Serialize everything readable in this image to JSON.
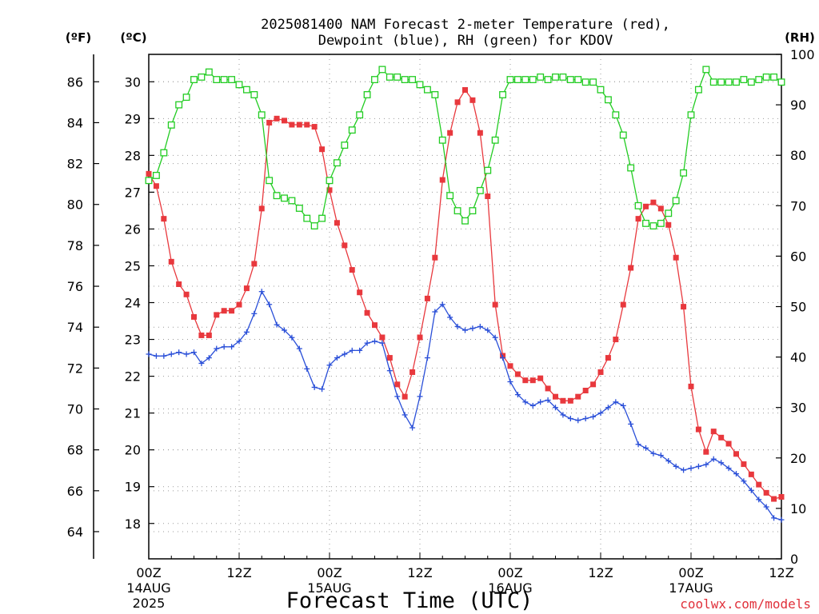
{
  "title_line1": "2025081400 NAM Forecast 2-meter Temperature (red),",
  "title_line2": "Dewpoint (blue), RH (green) for KDOV",
  "unit_f": "(ºF)",
  "unit_c": "(ºC)",
  "unit_rh": "(RH)",
  "xlabel": "Forecast Time (UTC)",
  "credit": "coolwx.com/models",
  "colors": {
    "temp": "#e8383d",
    "dew": "#2a4fd8",
    "rh": "#22cc22"
  },
  "chart_data": {
    "type": "line",
    "x_range_hours": [
      0,
      84
    ],
    "step_hours": 1,
    "x_ticks": [
      {
        "h": 0,
        "label": "00Z",
        "sub": [
          "14AUG",
          "2025"
        ]
      },
      {
        "h": 12,
        "label": "12Z",
        "sub": []
      },
      {
        "h": 24,
        "label": "00Z",
        "sub": [
          "15AUG"
        ]
      },
      {
        "h": 36,
        "label": "12Z",
        "sub": []
      },
      {
        "h": 48,
        "label": "00Z",
        "sub": [
          "16AUG"
        ]
      },
      {
        "h": 60,
        "label": "12Z",
        "sub": []
      },
      {
        "h": 72,
        "label": "00Z",
        "sub": [
          "17AUG"
        ]
      },
      {
        "h": 84,
        "label": "12Z",
        "sub": []
      }
    ],
    "y_f_ticks": [
      "64",
      "66",
      "68",
      "70",
      "72",
      "74",
      "76",
      "78",
      "80",
      "82",
      "84",
      "86"
    ],
    "y_c_ticks": [
      "18",
      "19",
      "20",
      "21",
      "22",
      "23",
      "24",
      "25",
      "26",
      "27",
      "28",
      "29",
      "30"
    ],
    "y_rh_ticks": [
      "0",
      "10",
      "20",
      "30",
      "40",
      "50",
      "60",
      "70",
      "80",
      "90",
      "100"
    ],
    "y_f_range": [
      62.67,
      87.34
    ],
    "rh_range": [
      0,
      100
    ],
    "grid": true,
    "series": [
      {
        "key": "temp",
        "marker": "filled-square",
        "values": [
          81.5,
          80.9,
          79.3,
          77.2,
          76.1,
          75.6,
          74.5,
          73.6,
          73.6,
          74.6,
          74.8,
          74.8,
          75.1,
          75.9,
          77.1,
          79.8,
          84.0,
          84.2,
          84.1,
          83.9,
          83.9,
          83.9,
          83.8,
          82.7,
          80.7,
          79.1,
          78.0,
          76.8,
          75.7,
          74.7,
          74.1,
          73.5,
          72.5,
          71.2,
          70.6,
          71.8,
          73.5,
          75.4,
          77.4,
          81.2,
          83.5,
          85.0,
          85.6,
          85.1,
          83.5,
          80.4,
          75.1,
          72.6,
          72.1,
          71.7,
          71.4,
          71.4,
          71.5,
          71.0,
          70.6,
          70.4,
          70.4,
          70.6,
          70.9,
          71.2,
          71.8,
          72.5,
          73.4,
          75.1,
          76.9,
          79.3,
          79.9,
          80.1,
          79.8,
          79.0,
          77.4,
          75.0,
          71.1,
          69.0,
          67.9,
          68.9,
          68.6,
          68.3,
          67.8,
          67.3,
          66.8,
          66.3,
          65.9,
          65.6,
          65.7
        ]
      },
      {
        "key": "dew",
        "marker": "plus",
        "values": [
          22.6,
          22.55,
          22.55,
          22.6,
          22.65,
          22.6,
          22.65,
          22.35,
          22.5,
          22.75,
          22.8,
          22.8,
          22.95,
          23.2,
          23.7,
          24.3,
          23.95,
          23.4,
          23.25,
          23.05,
          22.75,
          22.2,
          21.7,
          21.65,
          22.3,
          22.5,
          22.6,
          22.7,
          22.7,
          22.9,
          22.95,
          22.9,
          22.15,
          21.45,
          20.95,
          20.6,
          21.45,
          22.5,
          23.75,
          23.95,
          23.6,
          23.35,
          23.25,
          23.3,
          23.35,
          23.25,
          23.05,
          22.5,
          21.85,
          21.5,
          21.3,
          21.2,
          21.3,
          21.35,
          21.15,
          20.95,
          20.85,
          20.8,
          20.85,
          20.9,
          21.0,
          21.15,
          21.3,
          21.2,
          20.7,
          20.15,
          20.05,
          19.9,
          19.85,
          19.7,
          19.55,
          19.45,
          19.5,
          19.55,
          19.6,
          19.75,
          19.65,
          19.5,
          19.35,
          19.15,
          18.9,
          18.65,
          18.45,
          18.15,
          18.1
        ]
      },
      {
        "key": "rh",
        "marker": "open-square",
        "values": [
          75,
          76,
          80.5,
          86,
          90,
          91.5,
          95,
          95.5,
          96.5,
          95,
          95,
          95,
          94,
          93,
          92,
          88,
          75,
          72,
          71.5,
          71,
          69.5,
          67.5,
          66,
          67.5,
          75,
          78.5,
          82,
          85,
          88,
          92,
          95,
          97,
          95.5,
          95.5,
          95,
          95,
          94,
          93,
          92,
          83,
          72,
          69,
          67,
          69,
          73,
          77,
          83,
          92,
          95,
          95,
          95,
          95,
          95.5,
          95,
          95.5,
          95.5,
          95,
          95,
          94.5,
          94.5,
          93,
          91,
          88,
          84,
          77.5,
          70,
          66.5,
          66,
          66.5,
          68.5,
          71,
          76.5,
          88,
          93,
          97,
          94.5,
          94.5,
          94.5,
          94.5,
          95,
          94.5,
          95,
          95.5,
          95.5,
          94.5
        ]
      }
    ]
  }
}
